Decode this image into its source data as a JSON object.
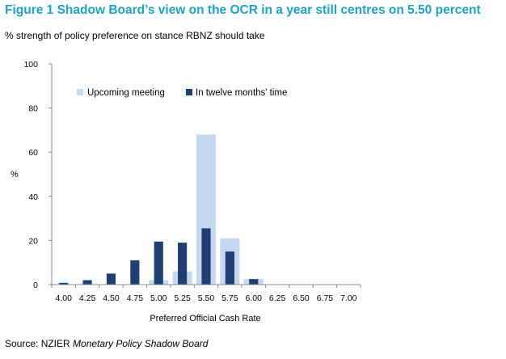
{
  "title": "Figure 1 Shadow Board’s view on the OCR in a year still centres on 5.50 percent",
  "subtitle": "% strength of policy preference on stance RBNZ should take",
  "source_prefix": "Source: NZIER ",
  "source_italic": "Monetary Policy Shadow Board",
  "chart_data": {
    "type": "bar",
    "title": "Figure 1 Shadow Board’s view on the OCR in a year still centres on 5.50 percent",
    "subtitle": "% strength of policy preference on stance RBNZ should take",
    "xlabel": "Preferred  Official Cash Rate",
    "ylabel": "%",
    "ylim": [
      0,
      100
    ],
    "yticks": [
      "0",
      "20",
      "40",
      "60",
      "80",
      "100"
    ],
    "categories": [
      "4.00",
      "4.25",
      "4.50",
      "4.75",
      "5.00",
      "5.25",
      "5.50",
      "5.75",
      "6.00",
      "6.25",
      "6.50",
      "6.75",
      "7.00"
    ],
    "series": [
      {
        "name": "Upcoming meeting",
        "color": "#c5d8f0",
        "values": [
          0,
          0,
          0,
          0,
          2,
          6,
          68,
          21,
          2.5,
          0,
          0,
          0,
          0
        ]
      },
      {
        "name": "In twelve months' time",
        "color": "#1f3f73",
        "values": [
          0.8,
          2,
          5,
          11,
          19.5,
          19,
          25.5,
          15,
          2.5,
          0,
          0,
          0,
          0
        ]
      }
    ],
    "legend": "top-center",
    "grid": false
  }
}
